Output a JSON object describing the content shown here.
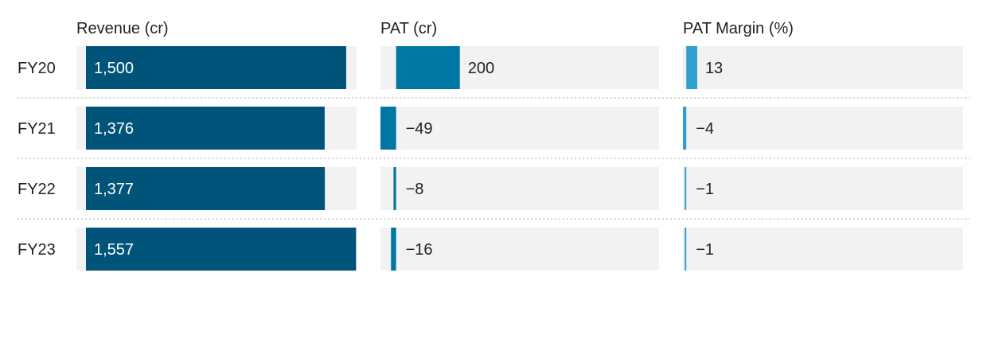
{
  "chart_data": {
    "type": "bar",
    "categories": [
      "FY20",
      "FY21",
      "FY22",
      "FY23"
    ],
    "series": [
      {
        "name": "Revenue (cr)",
        "values": [
          1500,
          1376,
          1377,
          1557
        ],
        "labels": [
          "1,500",
          "1,376",
          "1,377",
          "1,557"
        ],
        "xlim": [
          0,
          1560
        ],
        "color": "#00547a"
      },
      {
        "name": "PAT (cr)",
        "values": [
          200,
          -49,
          -8,
          -16
        ],
        "labels": [
          "200",
          "−49",
          "−8",
          "−16"
        ],
        "xlim": [
          -49,
          800
        ],
        "color": "#0077a3"
      },
      {
        "name": "PAT Margin (%)",
        "values": [
          13,
          -4,
          -1,
          -1
        ],
        "labels": [
          "13",
          "−4",
          "−1",
          "−1"
        ],
        "xlim": [
          -4,
          320
        ],
        "color": "#2f9fcf"
      }
    ],
    "grid": false,
    "legend": "none"
  }
}
